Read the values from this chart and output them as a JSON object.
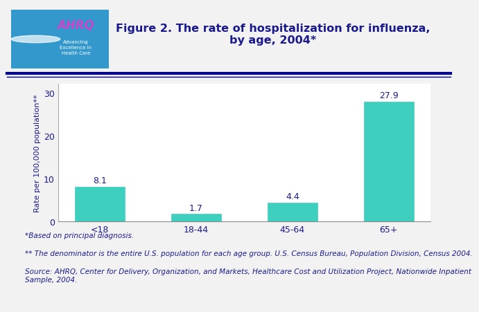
{
  "title_line1": "Figure 2. The rate of hospitalization for influenza,",
  "title_line2": "by age, 2004*",
  "categories": [
    "<18",
    "18-44",
    "45-64",
    "65+"
  ],
  "values": [
    8.1,
    1.7,
    4.4,
    27.9
  ],
  "bar_color": "#3ECFBE",
  "ylabel": "Rate per 100,000 population**",
  "ylim": [
    0,
    32
  ],
  "yticks": [
    0,
    10,
    20,
    30
  ],
  "title_color": "#1A1A8C",
  "tick_label_color": "#1A1A8C",
  "value_label_color": "#1A1A8C",
  "ylabel_color": "#1A1A8C",
  "background_color": "#F2F2F2",
  "plot_bg_color": "#FFFFFF",
  "footnote1": "*Based on principal diagnosis.",
  "footnote2": "** The denominator is the entire U.S. population for each age group. U.S. Census Bureau, Population Division, Census 2004.",
  "footnote3": "Source: AHRQ, Center for Delivery, Organization, and Markets, Healthcare Cost and Utilization Project, Nationwide Inpatient\nSample, 2004.",
  "header_line_color": "#00008B",
  "header_bg_color": "#FFFFFF",
  "logo_bg_color": "#3399CC",
  "title_fontsize": 11.5,
  "ylabel_fontsize": 8,
  "tick_fontsize": 9,
  "value_fontsize": 9,
  "footnote_fontsize": 7.5
}
